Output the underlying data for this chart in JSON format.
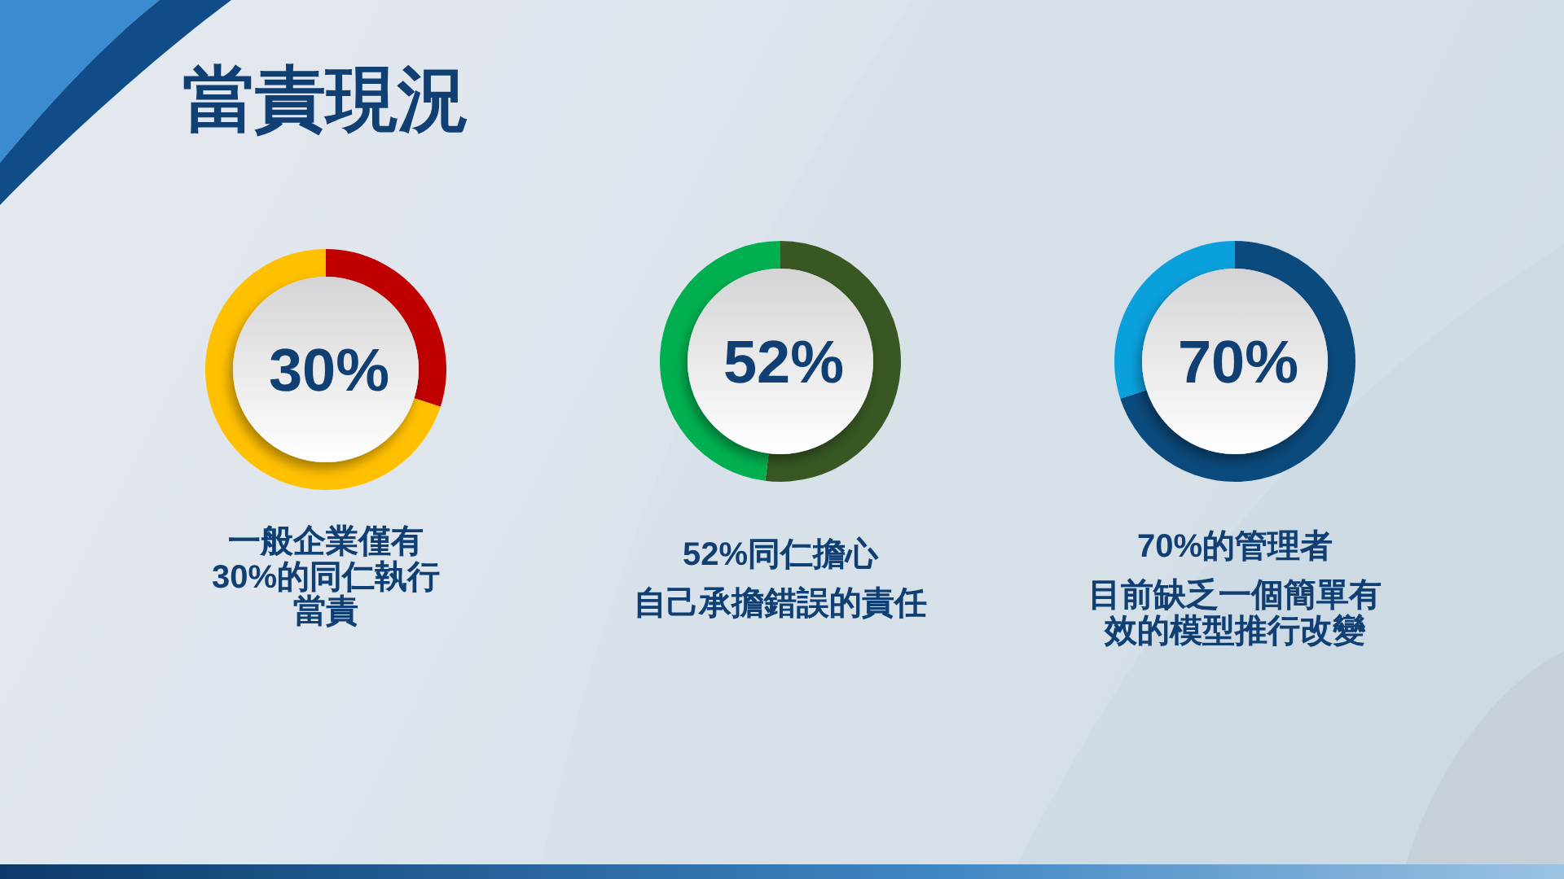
{
  "chart_data": [
    {
      "type": "donut",
      "title": "當責現況",
      "categories": [
        null,
        null
      ],
      "values": [
        30,
        70
      ],
      "colors": [
        "#c00000",
        "#ffc000"
      ],
      "value_labels": [
        "30%",
        null
      ],
      "annotations": [
        "一般企業僅有30%的同仁執行當責"
      ]
    },
    {
      "type": "donut",
      "categories": [
        null,
        null
      ],
      "values": [
        52,
        48
      ],
      "colors": [
        "#385723",
        "#00b050"
      ],
      "value_labels": [
        "52%",
        null
      ],
      "annotations": [
        "52%同仁擔心",
        "自己承擔錯誤的責任"
      ]
    },
    {
      "type": "donut",
      "categories": [
        null,
        null
      ],
      "values": [
        70,
        30
      ],
      "colors": [
        "#0b4a7c",
        "#0aa0dc"
      ],
      "value_labels": [
        "70%",
        null
      ],
      "annotations": [
        "70%的管理者",
        "目前缺乏一個簡單有效的模型推行改變"
      ]
    }
  ]
}
